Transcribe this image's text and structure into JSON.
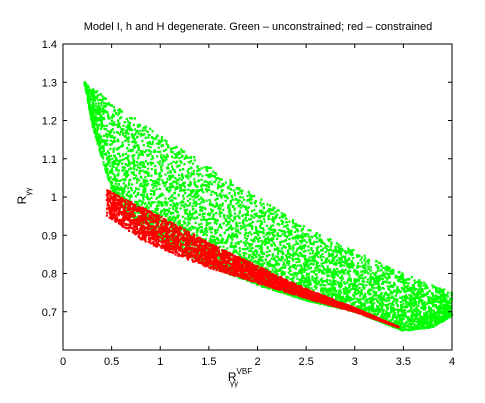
{
  "chart_data": {
    "type": "scatter",
    "title": "Model I, h and H degenerate. Green – unconstrained; red – constrained",
    "xlabel": {
      "base": "R",
      "sub": "γγ",
      "sup": "VBF"
    },
    "ylabel": {
      "base": "R",
      "sub": "γγ"
    },
    "xlim": [
      0,
      4
    ],
    "ylim": [
      0.6,
      1.4
    ],
    "xticks": [
      0,
      0.5,
      1,
      1.5,
      2,
      2.5,
      3,
      3.5,
      4
    ],
    "yticks": [
      0.7,
      0.8,
      0.9,
      1,
      1.1,
      1.2,
      1.3,
      1.4
    ],
    "xtick_labels": [
      "0",
      "0.5",
      "1",
      "1.5",
      "2",
      "2.5",
      "3",
      "3.5",
      "4"
    ],
    "ytick_labels": [
      "0.7",
      "0.8",
      "0.9",
      "1",
      "1.1",
      "1.2",
      "1.3",
      "1.4"
    ],
    "grid": false,
    "colors": {
      "unconstrained": "#00ff00",
      "constrained": "#ff0000",
      "axes": "#000000",
      "background": "#ffffff"
    },
    "series": [
      {
        "name": "unconstrained",
        "color": "#00ff00",
        "point_count": 6000,
        "region": {
          "x_min": 0.22,
          "x_max": 4.0,
          "upper_boundary": [
            [
              0.22,
              1.3
            ],
            [
              0.5,
              1.25
            ],
            [
              1.0,
              1.16
            ],
            [
              1.5,
              1.08
            ],
            [
              2.0,
              1.0
            ],
            [
              2.5,
              0.92
            ],
            [
              3.0,
              0.86
            ],
            [
              3.5,
              0.8
            ],
            [
              4.0,
              0.75
            ]
          ],
          "lower_boundary": [
            [
              0.22,
              1.3
            ],
            [
              0.3,
              1.19
            ],
            [
              0.4,
              1.1
            ],
            [
              0.5,
              1.02
            ],
            [
              0.7,
              0.95
            ],
            [
              1.0,
              0.89
            ],
            [
              1.5,
              0.82
            ],
            [
              2.0,
              0.77
            ],
            [
              2.5,
              0.73
            ],
            [
              3.0,
              0.7
            ],
            [
              3.5,
              0.65
            ],
            [
              3.8,
              0.66
            ],
            [
              4.0,
              0.69
            ]
          ]
        }
      },
      {
        "name": "constrained",
        "color": "#ff0000",
        "point_count": 3500,
        "region": {
          "x_min": 0.45,
          "x_max": 3.45,
          "upper_boundary": [
            [
              0.45,
              1.02
            ],
            [
              0.6,
              1.0
            ],
            [
              1.0,
              0.95
            ],
            [
              1.5,
              0.88
            ],
            [
              2.0,
              0.82
            ],
            [
              2.5,
              0.76
            ],
            [
              3.0,
              0.71
            ],
            [
              3.45,
              0.66
            ]
          ],
          "lower_boundary": [
            [
              0.45,
              0.95
            ],
            [
              0.6,
              0.925
            ],
            [
              0.8,
              0.89
            ],
            [
              1.0,
              0.865
            ],
            [
              1.5,
              0.815
            ],
            [
              2.0,
              0.775
            ],
            [
              2.5,
              0.735
            ],
            [
              3.0,
              0.7
            ],
            [
              3.45,
              0.66
            ]
          ]
        }
      }
    ]
  }
}
